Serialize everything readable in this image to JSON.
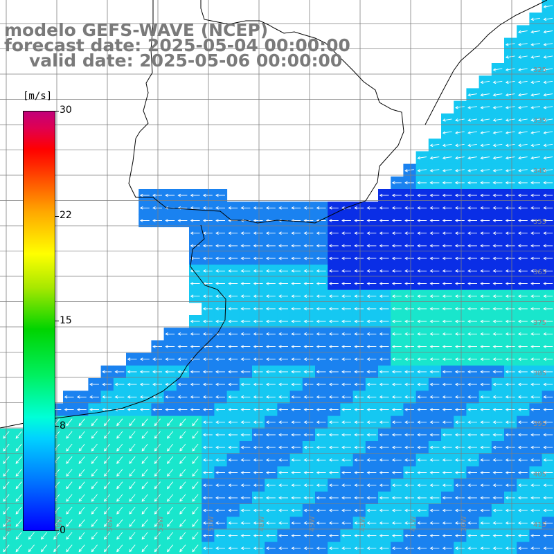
{
  "title": {
    "line1": "modelo GEFS-WAVE (NCEP)",
    "line2": "forecast date: 2025-05-04 00:00:00",
    "line3": "valid date: 2025-05-06 00:00:00"
  },
  "colorbar": {
    "unit": "[m/s]",
    "ticks": [
      "30",
      "22",
      "15",
      "8",
      "0"
    ],
    "stops": [
      "#0000ff",
      "#0078ff",
      "#00d2ff",
      "#00ffd8",
      "#00f060",
      "#00d400",
      "#a8e800",
      "#ffff00",
      "#ffa800",
      "#ff2a00",
      "#ff0000",
      "#c2007a"
    ]
  },
  "map": {
    "lat_labels": [
      "325",
      "335",
      "345",
      "355",
      "365",
      "375",
      "385",
      "395",
      "405",
      "415"
    ],
    "lon_labels": [
      "61W",
      "59W",
      "56W",
      "53W",
      "51W",
      "48W",
      "45W",
      "43W",
      "41W",
      "36W"
    ],
    "colors": {
      "ocean_dark": "#0a2ee6",
      "ocean_mid": "#1a82f0",
      "ocean_light": "#15c8f2",
      "ocean_teal": "#19e6cc",
      "land": "#ffffff",
      "grid": "#7f7f7f",
      "arrow": "#ffffff"
    }
  }
}
